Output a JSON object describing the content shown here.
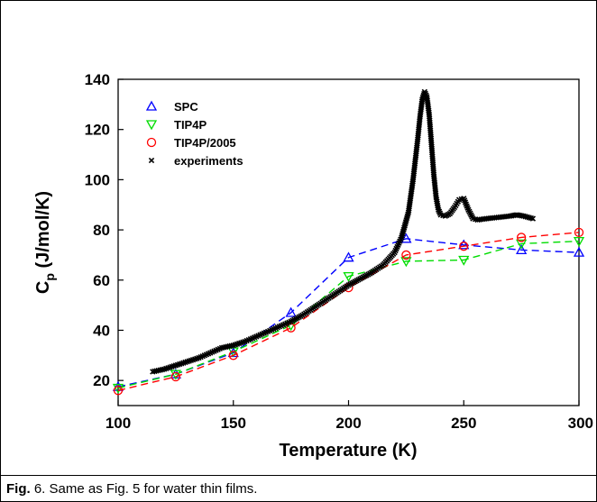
{
  "caption": {
    "label": "Fig.",
    "text": " 6. Same as Fig. 5 for water thin films."
  },
  "chart_data": {
    "type": "line",
    "title": "",
    "xlabel": "Temperature (K)",
    "ylabel_main": "C",
    "ylabel_sub": "p",
    "ylabel_rest": " (J/mol/K)",
    "xlim": [
      100,
      300
    ],
    "ylim": [
      10,
      140
    ],
    "xticks": [
      100,
      150,
      200,
      250,
      300
    ],
    "yticks": [
      20,
      40,
      60,
      80,
      100,
      120,
      140
    ],
    "grid": false,
    "legend_position": "top-left",
    "series": [
      {
        "name": "SPC",
        "marker": "triangle-up",
        "color": "#0000ff",
        "line_style": "dashed",
        "x": [
          100,
          125,
          150,
          175,
          200,
          225,
          250,
          275,
          300
        ],
        "y": [
          17.5,
          22.5,
          31,
          47,
          69,
          76.5,
          74,
          72,
          71
        ]
      },
      {
        "name": "TIP4P",
        "marker": "triangle-down",
        "color": "#00dd00",
        "line_style": "dashed",
        "x": [
          100,
          125,
          150,
          175,
          200,
          225,
          250,
          275,
          300
        ],
        "y": [
          17,
          22.5,
          31.5,
          42,
          61.5,
          67.5,
          68,
          74.5,
          75.5
        ]
      },
      {
        "name": "TIP4P/2005",
        "marker": "circle",
        "color": "#ff0000",
        "line_style": "dashed",
        "x": [
          100,
          125,
          150,
          175,
          200,
          225,
          250,
          275,
          300
        ],
        "y": [
          16,
          21.5,
          30,
          41,
          57,
          70,
          73.5,
          77,
          79
        ]
      },
      {
        "name": "experiments",
        "marker": "x",
        "color": "#000000",
        "line_style": "none",
        "x": [
          115,
          120,
          125,
          130,
          135,
          140,
          145,
          150,
          155,
          160,
          165,
          170,
          175,
          180,
          185,
          190,
          195,
          200,
          205,
          210,
          215,
          220,
          223,
          226,
          228,
          230,
          231,
          232,
          233,
          234,
          235,
          236,
          237,
          238,
          239,
          240,
          242,
          244,
          246,
          248,
          250,
          252,
          254,
          256,
          260,
          265,
          270,
          273,
          276,
          280
        ],
        "y": [
          23.5,
          24.5,
          26,
          27.5,
          29,
          31,
          33,
          34,
          35.5,
          37.5,
          39.5,
          41.5,
          43.5,
          46,
          49,
          52,
          55,
          58,
          60.5,
          63,
          66,
          71,
          77,
          87,
          100,
          116,
          125,
          132,
          135,
          133,
          126,
          114,
          102,
          93,
          88,
          86,
          85.5,
          86.5,
          89,
          92,
          92.5,
          88,
          84.5,
          84,
          84.5,
          85,
          85.5,
          86,
          85.5,
          84.5
        ]
      }
    ]
  }
}
